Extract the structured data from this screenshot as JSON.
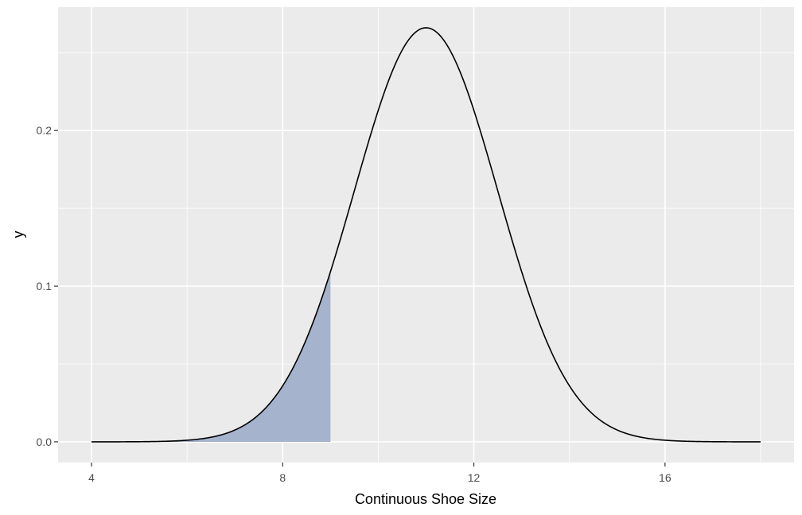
{
  "chart_data": {
    "type": "area",
    "title": "",
    "xlabel": "Continuous Shoe Size",
    "ylabel": "y",
    "distribution": {
      "family": "normal",
      "mean": 11,
      "sd": 1.5
    },
    "x_range": [
      4,
      18
    ],
    "xlim": [
      3.3,
      18.7
    ],
    "ylim": [
      -0.0133,
      0.2792
    ],
    "x_ticks": [
      4,
      8,
      12,
      16
    ],
    "x_tick_labels": [
      "4",
      "8",
      "12",
      "16"
    ],
    "y_ticks": [
      0.0,
      0.1,
      0.2
    ],
    "y_tick_labels": [
      "0.0",
      "0.1",
      "0.2"
    ],
    "shaded_region": {
      "from": 4,
      "to": 9
    },
    "grid": true,
    "colors": {
      "panel_background": "#ebebeb",
      "grid_line": "#ffffff",
      "curve": "#000000",
      "shade": "#a6b3cd"
    }
  }
}
